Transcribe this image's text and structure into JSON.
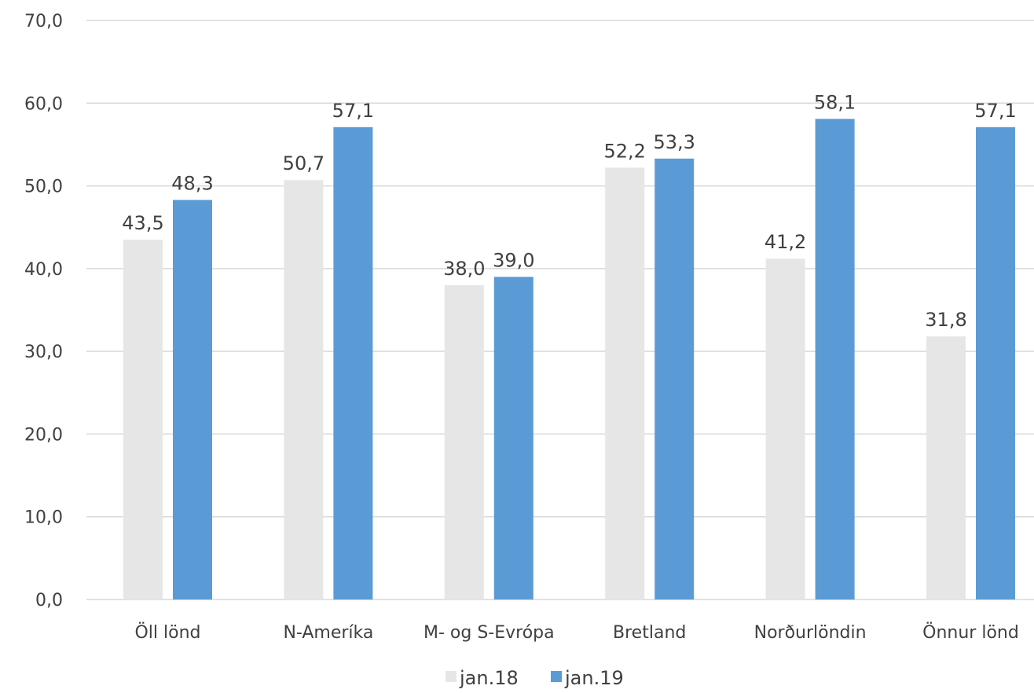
{
  "chart_data": {
    "type": "bar",
    "categories": [
      "Öll lönd",
      "N-Ameríka",
      "M- og S-Evrópa",
      "Bretland",
      "Norðurlöndin",
      "Önnur lönd"
    ],
    "series": [
      {
        "name": "jan.18",
        "color": "#e6e6e6",
        "values": [
          43.5,
          50.7,
          38.0,
          52.2,
          41.2,
          31.8
        ],
        "labels": [
          "43,5",
          "50,7",
          "38,0",
          "52,2",
          "41,2",
          "31,8"
        ]
      },
      {
        "name": "jan.19",
        "color": "#5b9bd5",
        "values": [
          48.3,
          57.1,
          39.0,
          53.3,
          58.1,
          57.1
        ],
        "labels": [
          "48,3",
          "57,1",
          "39,0",
          "53,3",
          "58,1",
          "57,1"
        ]
      }
    ],
    "ylim": [
      0,
      70
    ],
    "yticks": [
      0,
      10,
      20,
      30,
      40,
      50,
      60,
      70
    ],
    "ytick_labels": [
      "0,0",
      "10,0",
      "20,0",
      "30,0",
      "40,0",
      "50,0",
      "60,0",
      "70,0"
    ],
    "grid": true,
    "legend_position": "bottom",
    "title": "",
    "xlabel": "",
    "ylabel": ""
  }
}
